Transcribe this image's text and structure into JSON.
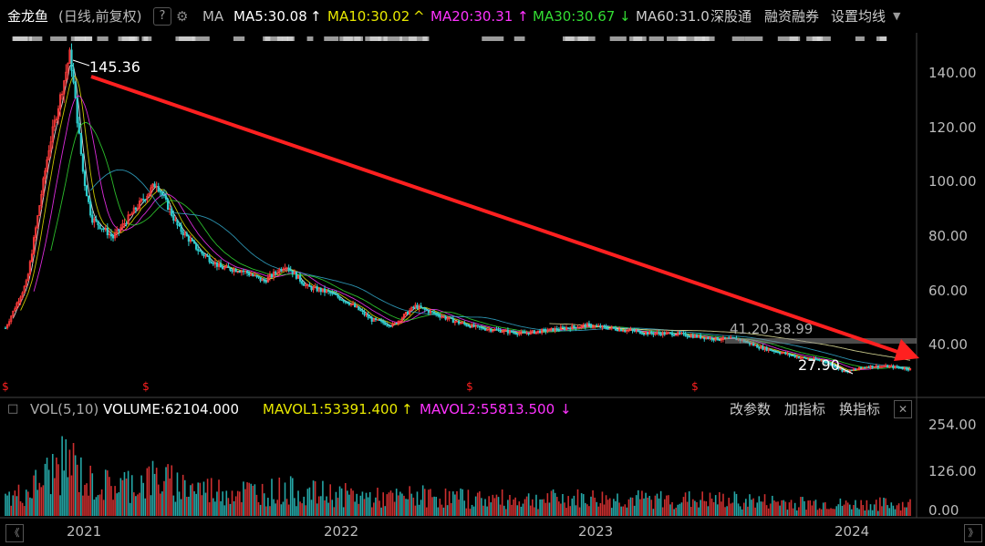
{
  "header": {
    "stock_name": "金龙鱼",
    "period_info": "(日线,前复权)",
    "help_icon": "?",
    "ma_label": "MA",
    "ma5": "MA5:30.08",
    "ma5_arrow": "↑",
    "ma10": "MA10:30.02",
    "ma10_arrow": "^",
    "ma20": "MA20:30.31",
    "ma20_arrow": "↑",
    "ma30": "MA30:30.67",
    "ma30_arrow": "↓",
    "ma60": "MA60:31.0",
    "link_hk": "深股通",
    "link_margin": "融资融券",
    "link_settings": "设置均线",
    "colors": {
      "ma5": "#ffffff",
      "ma10": "#e8e800",
      "ma20": "#ff33ff",
      "ma30": "#33dd33",
      "ma60": "#cccccc"
    }
  },
  "price_chart": {
    "annotations": {
      "high": "145.36",
      "low": "27.90",
      "range": "41.20-38.99"
    },
    "y_ticks": [
      "140.00",
      "120.00",
      "100.00",
      "80.00",
      "60.00",
      "40.00"
    ],
    "trend_arrow_color": "#ff2020"
  },
  "volume_panel": {
    "close_icon": "□",
    "vol_label": "VOL(5,10)",
    "volume": "VOLUME:62104.000",
    "mavol1": "MAVOL1:53391.400",
    "mavol1_arrow": "↑",
    "mavol2": "MAVOL2:55813.500",
    "mavol2_arrow": "↓",
    "btn_params": "改参数",
    "btn_add": "加指标",
    "btn_switch": "换指标",
    "close_btn": "✕",
    "y_ticks": [
      "254.00",
      "126.00",
      "0.00"
    ]
  },
  "x_axis": {
    "labels": [
      "2021",
      "2022",
      "2023",
      "2024"
    ],
    "scroll_left": "《",
    "scroll_right": "》"
  },
  "chart_data": {
    "type": "line",
    "title": "",
    "xlabel": "",
    "ylabel": "",
    "ylim": [
      25,
      150
    ],
    "series": [
      {
        "values": [
          [
            "2020-10",
            45
          ],
          [
            "2020-11",
            62
          ],
          [
            "2020-12",
            110
          ],
          [
            "2021-01",
            145.36
          ],
          [
            "2021-01-20",
            100
          ],
          [
            "2021-02",
            85
          ],
          [
            "2021-03",
            78
          ],
          [
            "2021-04",
            88
          ],
          [
            "2021-05",
            98
          ],
          [
            "2021-06",
            82
          ],
          [
            "2021-07",
            73
          ],
          [
            "2021-08",
            67
          ],
          [
            "2021-09",
            66
          ],
          [
            "2021-10",
            62
          ],
          [
            "2021-11",
            68
          ],
          [
            "2021-12",
            60
          ],
          [
            "2022-01",
            58
          ],
          [
            "2022-02",
            54
          ],
          [
            "2022-03",
            48
          ],
          [
            "2022-04",
            46
          ],
          [
            "2022-05",
            53
          ],
          [
            "2022-06",
            50
          ],
          [
            "2022-07",
            47
          ],
          [
            "2022-08",
            45
          ],
          [
            "2022-09",
            44
          ],
          [
            "2022-10",
            43
          ],
          [
            "2022-11",
            44
          ],
          [
            "2022-12",
            45
          ],
          [
            "2023-01",
            46
          ],
          [
            "2023-02",
            45
          ],
          [
            "2023-03",
            44
          ],
          [
            "2023-04",
            43
          ],
          [
            "2023-05",
            43
          ],
          [
            "2023-06",
            42
          ],
          [
            "2023-07",
            41
          ],
          [
            "2023-08",
            41
          ],
          [
            "2023-09",
            38
          ],
          [
            "2023-10",
            36
          ],
          [
            "2023-11",
            34
          ],
          [
            "2023-12",
            33
          ],
          [
            "2024-01",
            29
          ],
          [
            "2024-02",
            31
          ],
          [
            "2024-03",
            31
          ],
          [
            "2024-04",
            30
          ]
        ]
      }
    ]
  }
}
